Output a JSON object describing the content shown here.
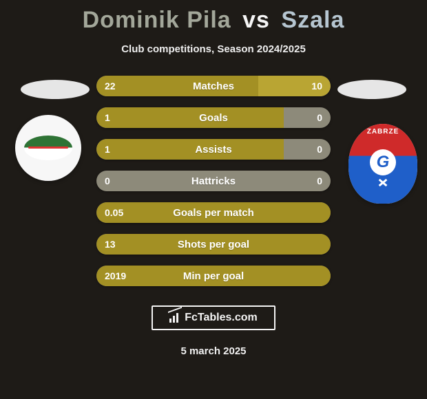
{
  "colors": {
    "background": "#1e1b17",
    "text_light": "#f5f5f5",
    "title_left": "#a3a79a",
    "title_right": "#b6c6d1",
    "subtitle": "#eeeeee",
    "bar_track": "#8d8a7a",
    "bar_left_fill": "#a39024",
    "bar_right_fill": "#b9a533",
    "bar_text": "#ffffff",
    "ellipse_left": "#e6e6e6",
    "ellipse_right": "#e6e6e6",
    "logo_border": "#f5f5f5",
    "logo_text": "#f5f5f5",
    "footer_date": "#f0f0f0"
  },
  "title": {
    "left": "Dominik Pila",
    "vs": "vs",
    "right": "Szala",
    "fontsize": 34
  },
  "subtitle": "Club competitions, Season 2024/2025",
  "bars": [
    {
      "label": "Matches",
      "left": "22",
      "right": "10",
      "leftPct": 69,
      "rightPct": 31
    },
    {
      "label": "Goals",
      "left": "1",
      "right": "0",
      "leftPct": 80,
      "rightPct": 0
    },
    {
      "label": "Assists",
      "left": "1",
      "right": "0",
      "leftPct": 80,
      "rightPct": 0
    },
    {
      "label": "Hattricks",
      "left": "0",
      "right": "0",
      "leftPct": 0,
      "rightPct": 0
    },
    {
      "label": "Goals per match",
      "left": "0.05",
      "right": "",
      "leftPct": 100,
      "rightPct": 0
    },
    {
      "label": "Shots per goal",
      "left": "13",
      "right": "",
      "leftPct": 100,
      "rightPct": 0
    },
    {
      "label": "Min per goal",
      "left": "2019",
      "right": "",
      "leftPct": 100,
      "rightPct": 0
    }
  ],
  "crest_right_text": "ZABRZE",
  "crest_right_letter": "G",
  "footer_logo_text": "FcTables.com",
  "footer_date": "5 march 2025"
}
